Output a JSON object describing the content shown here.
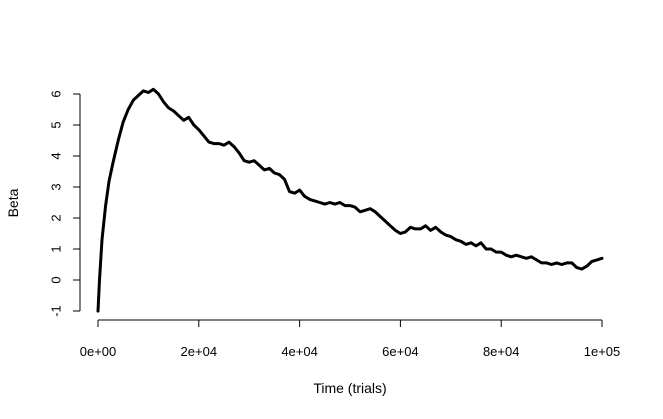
{
  "chart_data": {
    "type": "line",
    "title": "",
    "xlabel": "Time (trials)",
    "ylabel": "Beta",
    "xlim": [
      0,
      100000
    ],
    "ylim": [
      -1,
      6
    ],
    "xticks": [
      0,
      20000,
      40000,
      60000,
      80000,
      100000
    ],
    "xtick_labels": [
      "0e+00",
      "2e+04",
      "4e+04",
      "6e+04",
      "8e+04",
      "1e+05"
    ],
    "yticks": [
      -1,
      0,
      1,
      2,
      3,
      4,
      5,
      6
    ],
    "ytick_labels": [
      "-1",
      "0",
      "1",
      "2",
      "3",
      "4",
      "5",
      "6"
    ],
    "grid": false,
    "series": [
      {
        "x": [
          0,
          300,
          800,
          1500,
          2200,
          3000,
          4000,
          5000,
          6000,
          7000,
          8000,
          9000,
          10000,
          11000,
          12000,
          13000,
          14000,
          15000,
          16000,
          17000,
          18000,
          19000,
          20000,
          21000,
          22000,
          23000,
          24000,
          25000,
          26000,
          27000,
          28000,
          29000,
          30000,
          31000,
          32000,
          33000,
          34000,
          35000,
          36000,
          37000,
          38000,
          39000,
          40000,
          41000,
          42000,
          43000,
          44000,
          45000,
          46000,
          47000,
          48000,
          49000,
          50000,
          51000,
          52000,
          53000,
          54000,
          55000,
          56000,
          57000,
          58000,
          59000,
          60000,
          61000,
          62000,
          63000,
          64000,
          65000,
          66000,
          67000,
          68000,
          69000,
          70000,
          71000,
          72000,
          73000,
          74000,
          75000,
          76000,
          77000,
          78000,
          79000,
          80000,
          81000,
          82000,
          83000,
          84000,
          85000,
          86000,
          87000,
          88000,
          89000,
          90000,
          91000,
          92000,
          93000,
          94000,
          95000,
          96000,
          97000,
          98000,
          99000,
          100000
        ],
        "y": [
          -1.0,
          0.0,
          1.3,
          2.4,
          3.2,
          3.8,
          4.5,
          5.1,
          5.5,
          5.8,
          5.95,
          6.1,
          6.05,
          6.15,
          6.0,
          5.75,
          5.55,
          5.45,
          5.3,
          5.15,
          5.25,
          5.0,
          4.85,
          4.65,
          4.45,
          4.4,
          4.4,
          4.35,
          4.45,
          4.3,
          4.1,
          3.85,
          3.8,
          3.85,
          3.7,
          3.55,
          3.6,
          3.45,
          3.4,
          3.25,
          2.85,
          2.8,
          2.9,
          2.7,
          2.6,
          2.55,
          2.5,
          2.45,
          2.5,
          2.45,
          2.5,
          2.4,
          2.4,
          2.35,
          2.2,
          2.25,
          2.3,
          2.2,
          2.05,
          1.9,
          1.75,
          1.6,
          1.5,
          1.55,
          1.7,
          1.65,
          1.65,
          1.75,
          1.6,
          1.7,
          1.55,
          1.45,
          1.4,
          1.3,
          1.25,
          1.15,
          1.2,
          1.1,
          1.2,
          1.0,
          1.0,
          0.9,
          0.9,
          0.8,
          0.75,
          0.8,
          0.75,
          0.7,
          0.75,
          0.65,
          0.55,
          0.55,
          0.5,
          0.55,
          0.5,
          0.55,
          0.55,
          0.4,
          0.35,
          0.45,
          0.6,
          0.65,
          0.7
        ]
      }
    ]
  }
}
